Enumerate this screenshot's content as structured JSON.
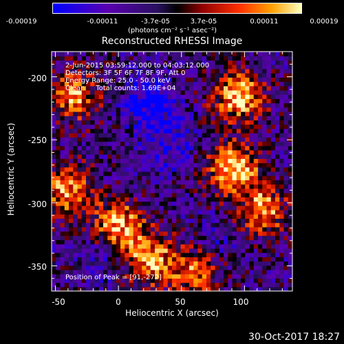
{
  "title": "Reconstructed RHESSI Image",
  "colorbar": {
    "ticks": [
      "-0.00019",
      "-0.00011",
      "-3.7e-05",
      "3.7e-05",
      "0.00011",
      "0.00019"
    ],
    "unit_label": "(photons cm⁻² s⁻¹ asec⁻²)"
  },
  "info": {
    "time_range": "2-Jun-2015 03:59:12.000 to 04:03:12.000",
    "detectors": "Detectors: 3F 5F 6F 7F 8F 9F, Att 0",
    "energy": "Energy Range: 25.0 - 50.0 keV",
    "clean": "Clean     Total counts: 1.69E+04",
    "peak": "Position of Peak = [91,-272]"
  },
  "footer_timestamp": "30-Oct-2017 18:27",
  "colors": {
    "background": "#000000",
    "colormap": [
      "#0000ff",
      "#5a00a0",
      "#3a1a80",
      "#000000",
      "#7a0000",
      "#ff3000",
      "#ffa000",
      "#ffffa0"
    ]
  },
  "chart_data": {
    "type": "heatmap",
    "title": "Reconstructed RHESSI Image",
    "xlabel": "Heliocentric X (arcsec)",
    "ylabel": "Heliocentric Y (arcsec)",
    "xlim": [
      -53,
      138
    ],
    "ylim": [
      -370,
      -180
    ],
    "xticks": [
      -50,
      0,
      50,
      100
    ],
    "yticks": [
      -350,
      -300,
      -250,
      -200
    ],
    "value_range": [
      -0.00019,
      0.00019
    ],
    "peak": [
      91,
      -272
    ],
    "hot_regions": [
      {
        "x": 91,
        "y": -272,
        "value": 0.00019
      },
      {
        "x": 95,
        "y": -215,
        "value": 0.00017
      },
      {
        "x": 0,
        "y": -318,
        "value": 0.00016
      },
      {
        "x": 25,
        "y": -345,
        "value": 0.00015
      },
      {
        "x": -40,
        "y": -290,
        "value": 0.00014
      },
      {
        "x": -35,
        "y": -215,
        "value": 0.00012
      },
      {
        "x": 115,
        "y": -305,
        "value": 0.00013
      },
      {
        "x": 60,
        "y": -355,
        "value": 0.0001
      }
    ],
    "cold_regions": [
      {
        "x": 25,
        "y": -220,
        "value": -0.00019
      },
      {
        "x": 40,
        "y": -255,
        "value": -0.00015
      },
      {
        "x": -10,
        "y": -340,
        "value": -0.00012
      },
      {
        "x": 80,
        "y": -330,
        "value": -0.0001
      }
    ]
  }
}
